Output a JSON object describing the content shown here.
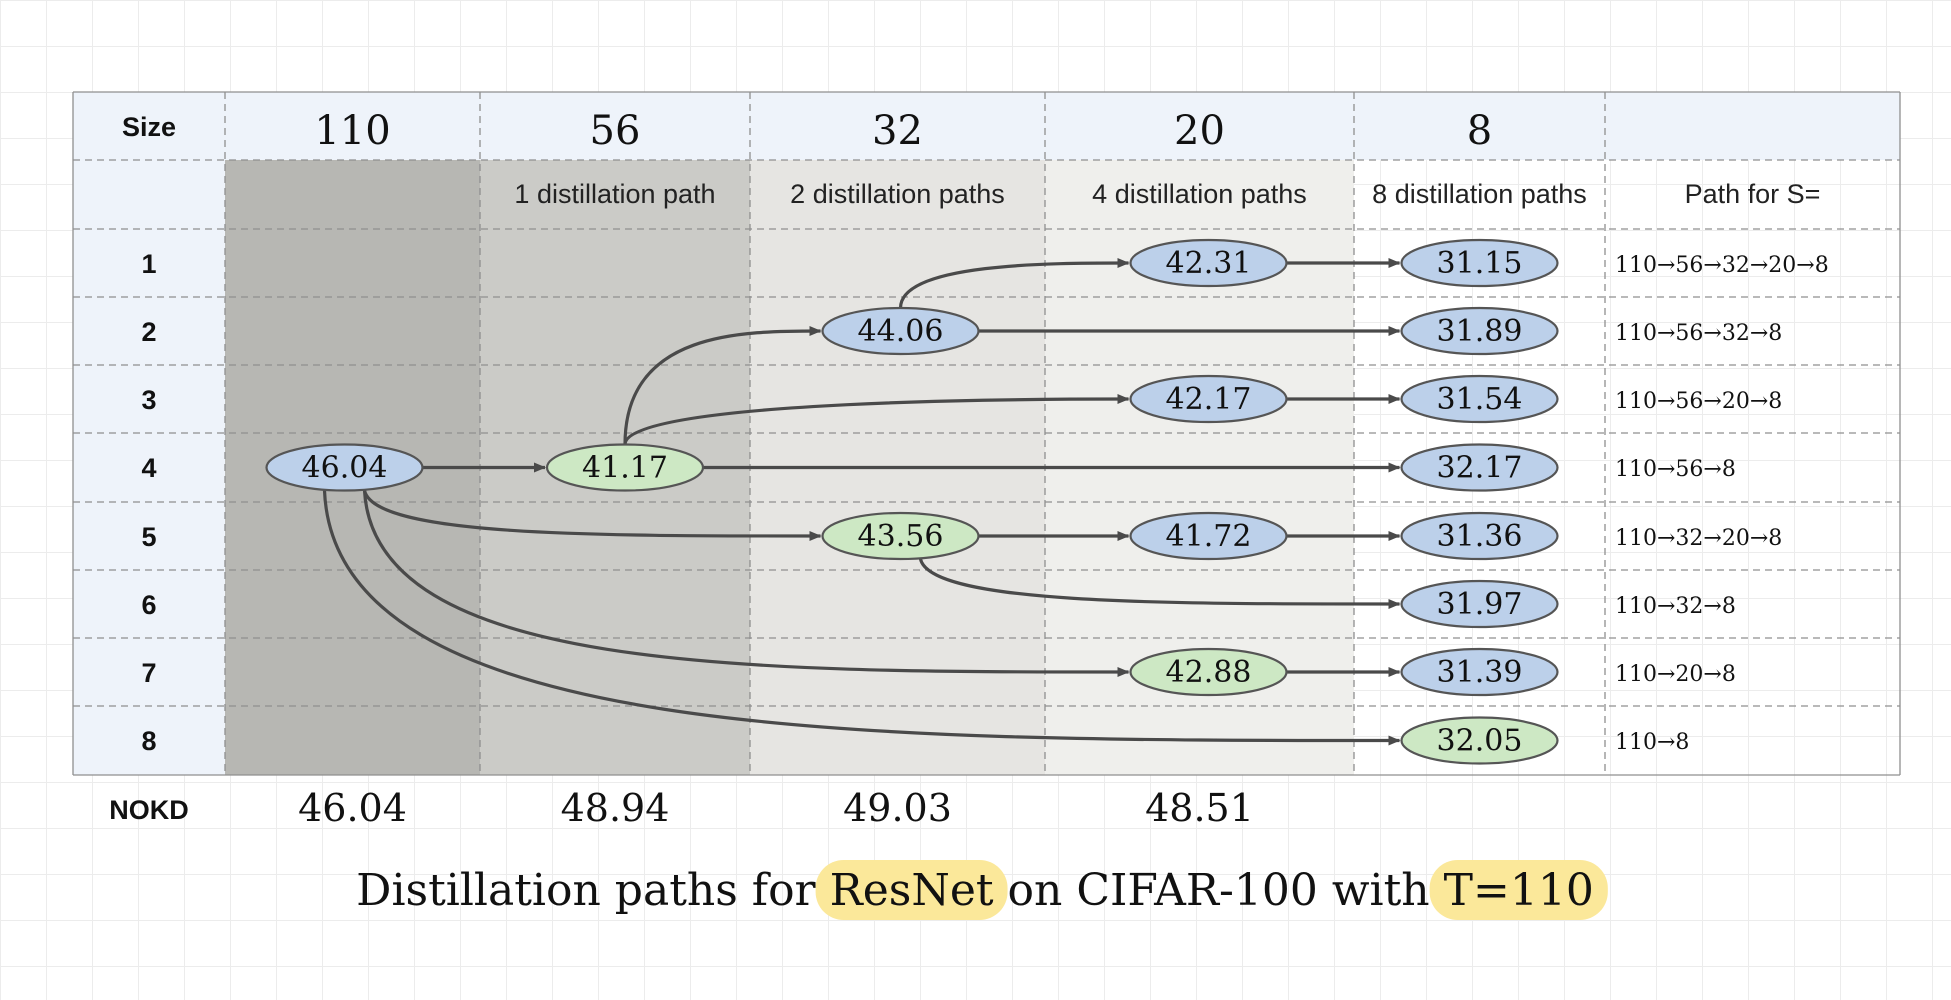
{
  "header": {
    "size_label": "Size",
    "sizes": [
      "110",
      "56",
      "32",
      "20",
      "8"
    ],
    "path_column_label": "Path for S="
  },
  "subheaders": [
    "",
    "1 distillation path",
    "2 distillation paths",
    "4 distillation paths",
    "8 distillation paths"
  ],
  "row_labels": [
    "1",
    "2",
    "3",
    "4",
    "5",
    "6",
    "7",
    "8",
    "NOKD"
  ],
  "nodes": [
    {
      "id": "r4c0",
      "col": 0,
      "row": 4,
      "value": "46.04",
      "color": "blue"
    },
    {
      "id": "r4c1",
      "col": 1,
      "row": 4,
      "value": "41.17",
      "color": "green"
    },
    {
      "id": "r2c2",
      "col": 2,
      "row": 2,
      "value": "44.06",
      "color": "blue"
    },
    {
      "id": "r5c2",
      "col": 2,
      "row": 5,
      "value": "43.56",
      "color": "green"
    },
    {
      "id": "r1c3",
      "col": 3,
      "row": 1,
      "value": "42.31",
      "color": "blue"
    },
    {
      "id": "r3c3",
      "col": 3,
      "row": 3,
      "value": "42.17",
      "color": "blue"
    },
    {
      "id": "r5c3",
      "col": 3,
      "row": 5,
      "value": "41.72",
      "color": "blue"
    },
    {
      "id": "r7c3",
      "col": 3,
      "row": 7,
      "value": "42.88",
      "color": "green"
    },
    {
      "id": "r1c4",
      "col": 4,
      "row": 1,
      "value": "31.15",
      "color": "blue"
    },
    {
      "id": "r2c4",
      "col": 4,
      "row": 2,
      "value": "31.89",
      "color": "blue"
    },
    {
      "id": "r3c4",
      "col": 4,
      "row": 3,
      "value": "31.54",
      "color": "blue"
    },
    {
      "id": "r4c4",
      "col": 4,
      "row": 4,
      "value": "32.17",
      "color": "blue"
    },
    {
      "id": "r5c4",
      "col": 4,
      "row": 5,
      "value": "31.36",
      "color": "blue"
    },
    {
      "id": "r6c4",
      "col": 4,
      "row": 6,
      "value": "31.97",
      "color": "blue"
    },
    {
      "id": "r7c4",
      "col": 4,
      "row": 7,
      "value": "31.39",
      "color": "blue"
    },
    {
      "id": "r8c4",
      "col": 4,
      "row": 8,
      "value": "32.05",
      "color": "green"
    }
  ],
  "edges": [
    {
      "from": "r4c0",
      "to": "r4c1"
    },
    {
      "from": "r4c1",
      "to": "r2c2"
    },
    {
      "from": "r2c2",
      "to": "r1c3"
    },
    {
      "from": "r1c3",
      "to": "r1c4"
    },
    {
      "from": "r2c2",
      "to": "r2c4"
    },
    {
      "from": "r4c1",
      "to": "r3c3"
    },
    {
      "from": "r3c3",
      "to": "r3c4"
    },
    {
      "from": "r4c1",
      "to": "r4c4"
    },
    {
      "from": "r4c0",
      "to": "r5c2"
    },
    {
      "from": "r5c2",
      "to": "r5c3"
    },
    {
      "from": "r5c3",
      "to": "r5c4"
    },
    {
      "from": "r5c2",
      "to": "r6c4"
    },
    {
      "from": "r4c0",
      "to": "r7c3"
    },
    {
      "from": "r7c3",
      "to": "r7c4"
    },
    {
      "from": "r4c0",
      "to": "r8c4"
    }
  ],
  "paths": [
    "110→56→32→20→8",
    "110→56→32→8",
    "110→56→20→8",
    "110→56→8",
    "110→32→20→8",
    "110→32→8",
    "110→20→8",
    "110→8"
  ],
  "nokd": [
    "46.04",
    "48.94",
    "49.03",
    "48.51",
    ""
  ],
  "caption": {
    "prefix": "Distillation paths for ",
    "highlight1": "ResNet",
    "middle": " on CIFAR-100 with ",
    "highlight2": "T=110"
  },
  "colors": {
    "node_blue": "#bcd0ea",
    "node_green": "#cde8c4",
    "node_stroke": "#555555",
    "arrow": "#4a4a4a",
    "col_110": "#b7b7b3",
    "col_56": "#cbcbc7",
    "col_32": "#e6e5e2",
    "col_20": "#efefec",
    "header_bg": "#eef3fa",
    "highlight": "#fbe89a"
  }
}
